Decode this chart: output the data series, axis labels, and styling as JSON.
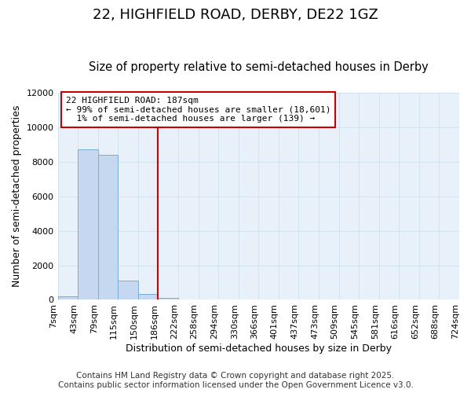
{
  "title": "22, HIGHFIELD ROAD, DERBY, DE22 1GZ",
  "subtitle": "Size of property relative to semi-detached houses in Derby",
  "xlabel": "Distribution of semi-detached houses by size in Derby",
  "ylabel": "Number of semi-detached properties",
  "footer_line1": "Contains HM Land Registry data © Crown copyright and database right 2025.",
  "footer_line2": "Contains public sector information licensed under the Open Government Licence v3.0.",
  "annotation_line1": "22 HIGHFIELD ROAD: 187sqm",
  "annotation_line2": "← 99% of semi-detached houses are smaller (18,601)",
  "annotation_line3": "1% of semi-detached houses are larger (139) →",
  "bin_labels": [
    "7sqm",
    "43sqm",
    "79sqm",
    "115sqm",
    "150sqm",
    "186sqm",
    "222sqm",
    "258sqm",
    "294sqm",
    "330sqm",
    "366sqm",
    "401sqm",
    "437sqm",
    "473sqm",
    "509sqm",
    "545sqm",
    "581sqm",
    "616sqm",
    "652sqm",
    "688sqm",
    "724sqm"
  ],
  "bar_heights": [
    200,
    8700,
    8400,
    1100,
    350,
    90,
    20,
    5,
    2,
    1,
    0,
    0,
    0,
    0,
    0,
    0,
    0,
    0,
    0,
    0
  ],
  "bar_color": "#c5d8f0",
  "bar_edge_color": "#7aadd4",
  "vline_color": "#cc0000",
  "vline_x_index": 5,
  "annotation_box_color": "#cc0000",
  "ylim": [
    0,
    12000
  ],
  "yticks": [
    0,
    2000,
    4000,
    6000,
    8000,
    10000,
    12000
  ],
  "grid_color": "#d0e0ee",
  "bg_color": "#e8f0fa",
  "title_fontsize": 13,
  "subtitle_fontsize": 10.5,
  "axis_label_fontsize": 9,
  "tick_fontsize": 8,
  "annotation_fontsize": 8,
  "footer_fontsize": 7.5
}
